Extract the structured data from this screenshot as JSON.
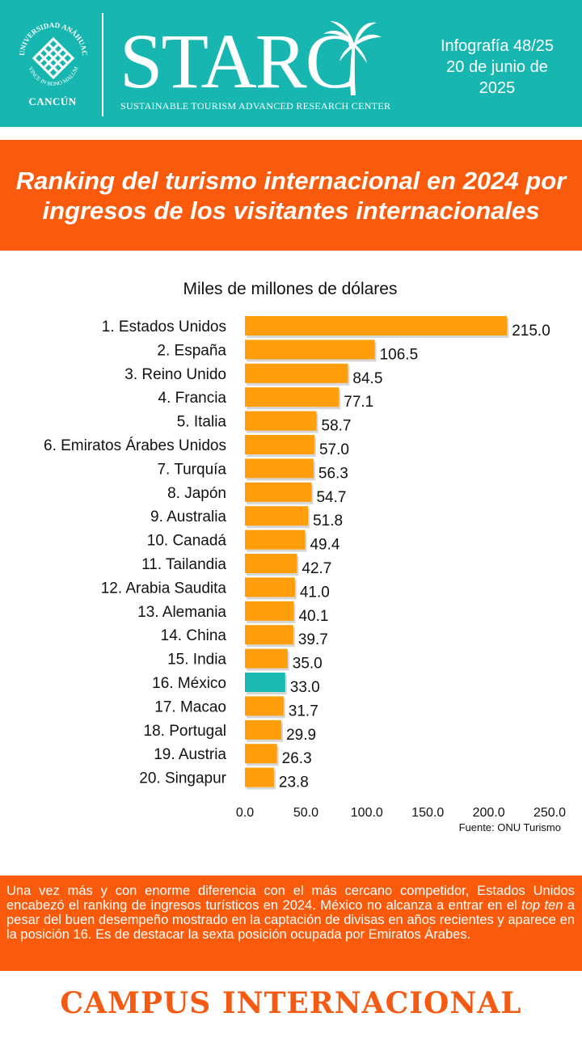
{
  "header": {
    "university_arc_text": "UNIVERSIDAD ANÁHUAC",
    "university_motto": "VINCE IN BONO MALUM",
    "university_campus": "CANCÚN",
    "logo_text": "STARC",
    "logo_subtitle": "SUSTAINABLE TOURISM ADVANCED RESEARCH CENTER",
    "info_line1": "Infografía 48/25",
    "info_line2": "20 de junio de",
    "info_line3": "2025"
  },
  "title": "Ranking del turismo internacional en 2024 por ingresos de los visitantes internacionales",
  "chart_data": {
    "type": "bar",
    "orientation": "horizontal",
    "subtitle": "Miles de millones de dólares",
    "source": "Fuente: ONU Turismo",
    "categories": [
      "1. Estados Unidos",
      "2. España",
      "3. Reino Unido",
      "4. Francia",
      "5. Italia",
      "6. Emiratos Árabes Unidos",
      "7. Turquía",
      "8. Japón",
      "9. Australia",
      "10. Canadá",
      "11. Tailandia",
      "12. Arabia Saudita",
      "13. Alemania",
      "14. China",
      "15. India",
      "16. México",
      "17. Macao",
      "18. Portugal",
      "19. Austria",
      "20. Singapur"
    ],
    "values": [
      215.0,
      106.5,
      84.5,
      77.1,
      58.7,
      57.0,
      56.3,
      54.7,
      51.8,
      49.4,
      42.7,
      41.0,
      40.1,
      39.7,
      35.0,
      33.0,
      31.7,
      29.9,
      26.3,
      23.8
    ],
    "value_labels": [
      "215.0",
      "106.5",
      "84.5",
      "77.1",
      "58.7",
      "57.0",
      "56.3",
      "54.7",
      "51.8",
      "49.4",
      "42.7",
      "41.0",
      "40.1",
      "39.7",
      "35.0",
      "33.0",
      "31.7",
      "29.9",
      "26.3",
      "23.8"
    ],
    "xlim": [
      0,
      250
    ],
    "ticks": [
      0,
      50,
      100,
      150,
      200,
      250
    ],
    "tick_labels": [
      "0.0",
      "50.0",
      "100.0",
      "150.0",
      "200.0",
      "250.0"
    ],
    "highlight_index": 15,
    "grid": false,
    "colors": {
      "bar": "#ff9d0a",
      "highlight": "#1bb8b2"
    }
  },
  "footer": {
    "text_before": "Una vez más y con enorme diferencia con el más cercano competidor, Estados Unidos encabezó el ranking de ingresos turísticos en 2024. México no alcanza a entrar en el ",
    "text_em": "top ten",
    "text_after": " a pesar del buen desempeño mostrado en la captación de divisas en años recientes y aparece en la posición 16. Es de destacar la sexta posición ocupada por Emiratos Árabes."
  },
  "campus": "CAMPUS INTERNACIONAL",
  "colors": {
    "teal": "#17b6b0",
    "orange": "#fa5a0b",
    "campus_text": "#f45a12"
  }
}
